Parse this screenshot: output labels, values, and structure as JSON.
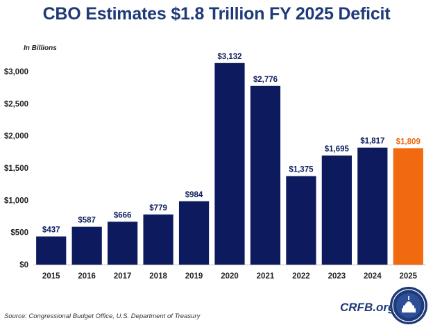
{
  "title": "CBO Estimates $1.8 Trillion FY 2025 Deficit",
  "source": "Source: Congressional Budget Office, U.S. Department of Treasury",
  "brand": "CRFB.org",
  "colors": {
    "primary": "#0d1b5e",
    "highlight": "#f26a0f",
    "title": "#1f3a79"
  },
  "chart_data": {
    "type": "bar",
    "title": "CBO Estimates $1.8 Trillion FY 2025 Deficit",
    "unit_label": "In Billions",
    "categories": [
      "2015",
      "2016",
      "2017",
      "2018",
      "2019",
      "2020",
      "2021",
      "2022",
      "2023",
      "2024",
      "2025"
    ],
    "values": [
      437,
      587,
      666,
      779,
      984,
      3132,
      2776,
      1375,
      1695,
      1817,
      1809
    ],
    "data_labels": [
      "$437",
      "$587",
      "$666",
      "$779",
      "$984",
      "$3,132",
      "$2,776",
      "$1,375",
      "$1,695",
      "$1,817",
      "$1,809"
    ],
    "highlight_index": 10,
    "ylim": [
      0,
      3000
    ],
    "yticks": [
      0,
      500,
      1000,
      1500,
      2000,
      2500,
      3000
    ],
    "ytick_labels": [
      "$0",
      "$500",
      "$1,000",
      "$1,500",
      "$2,000",
      "$2,500",
      "$3,000"
    ],
    "grid": false,
    "legend": "none"
  }
}
